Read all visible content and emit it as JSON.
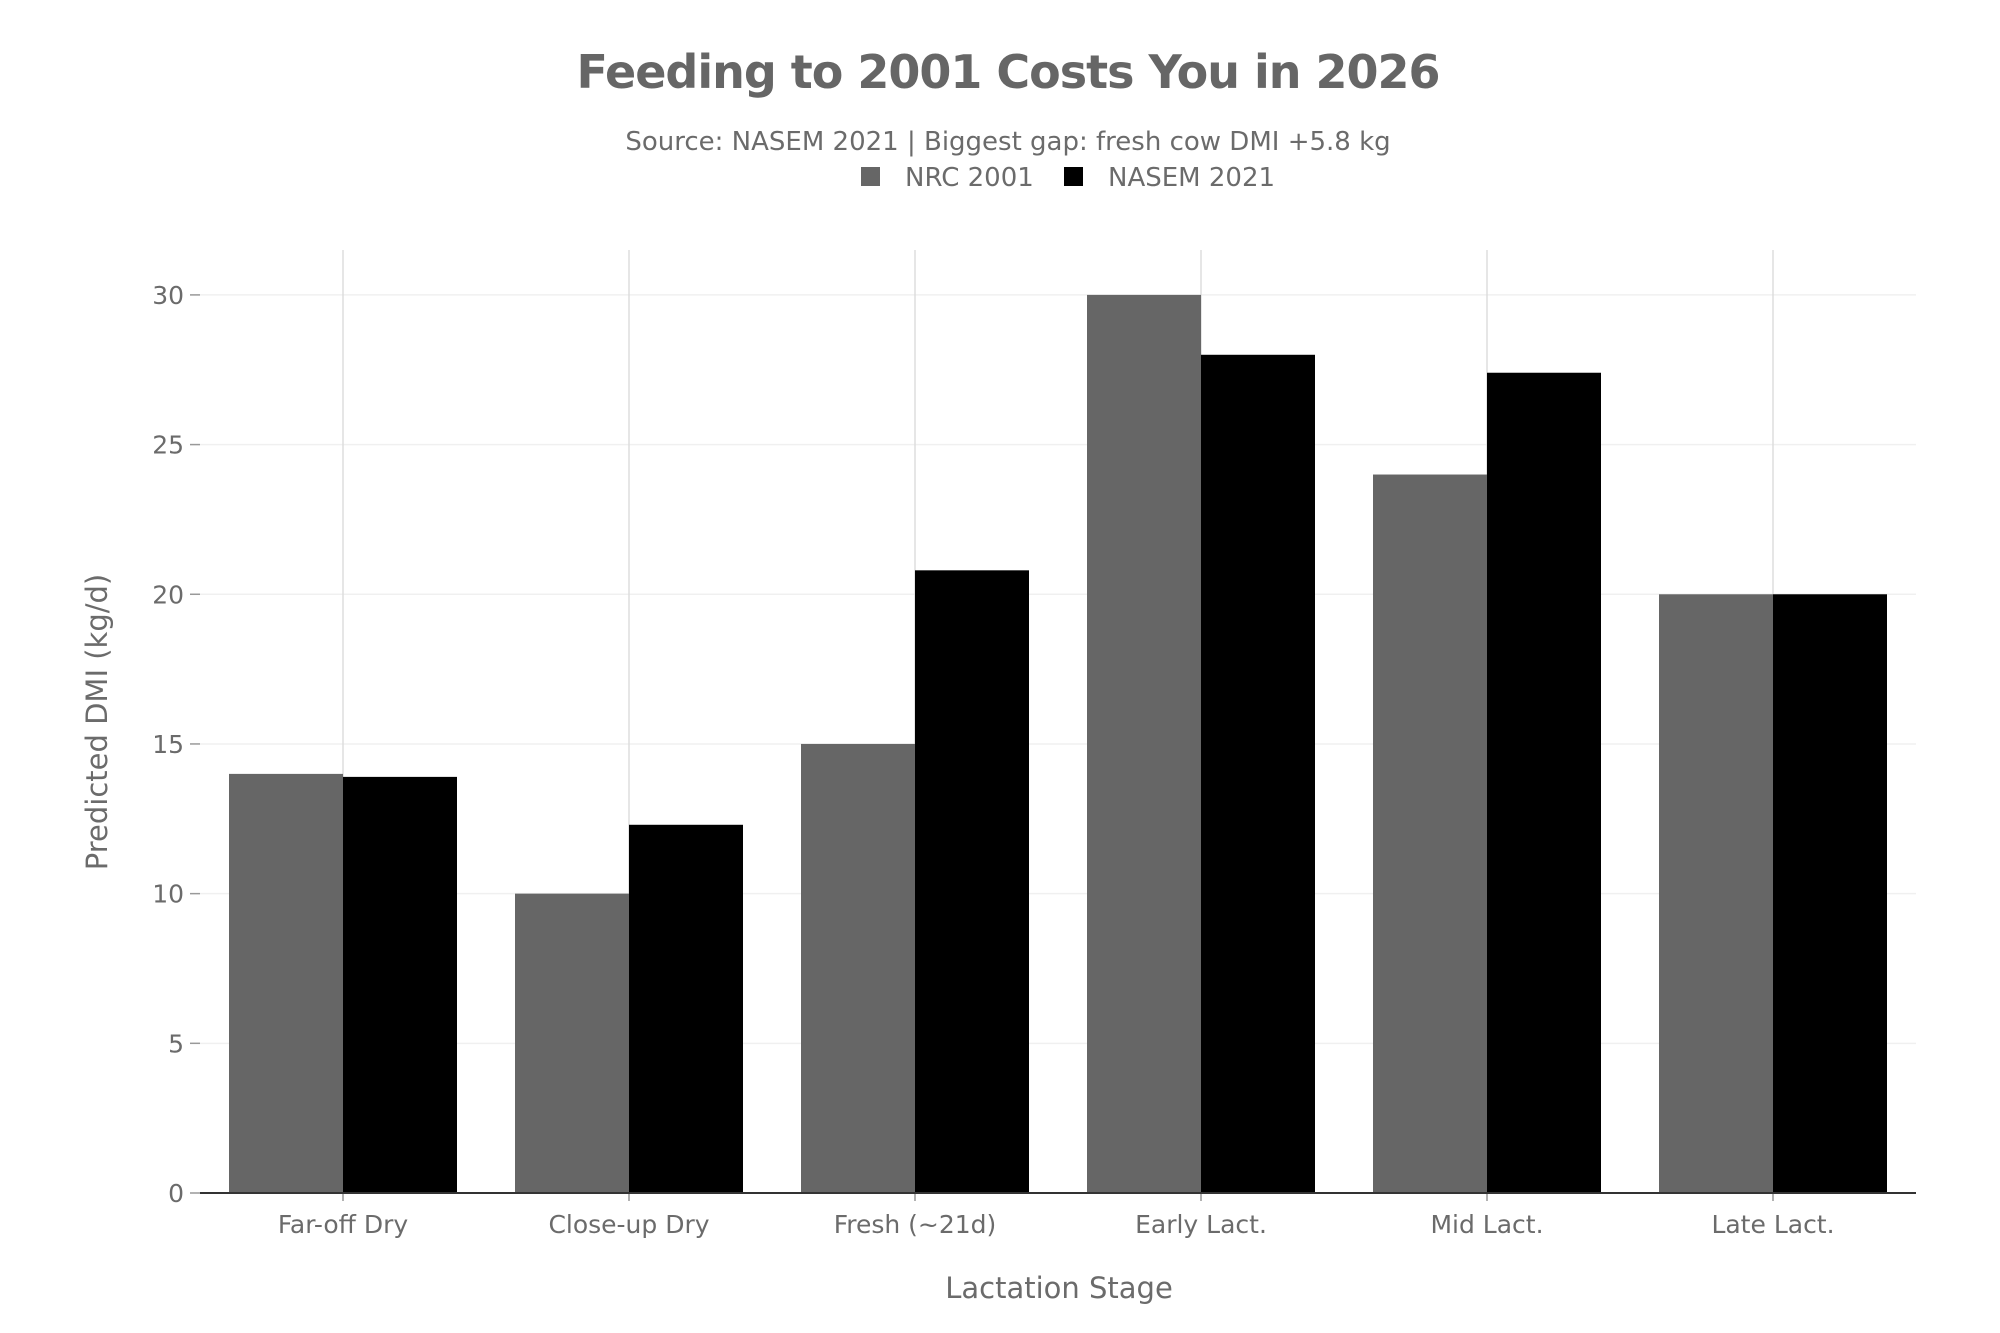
{
  "chart_data": {
    "type": "bar",
    "title": "Feeding to 2001 Costs You in 2026",
    "subtitle": "Source: NASEM 2021 | Biggest gap: fresh cow DMI +5.8 kg",
    "xlabel": "Lactation Stage",
    "ylabel": "Predicted DMI (kg/d)",
    "ylim": [
      0,
      31.5
    ],
    "yticks": [
      0,
      5,
      10,
      15,
      20,
      25,
      30
    ],
    "grid": true,
    "legend_position": "top-center",
    "categories": [
      "Far-off Dry",
      "Close-up Dry",
      "Fresh (~21d)",
      "Early Lact.",
      "Mid Lact.",
      "Late Lact."
    ],
    "series": [
      {
        "name": "NRC 2001",
        "color": "#666666",
        "values": [
          14,
          10,
          15,
          30,
          24,
          20
        ]
      },
      {
        "name": "NASEM 2021",
        "color": "#000000",
        "values": [
          13.9,
          12.3,
          20.8,
          28,
          27.4,
          20
        ]
      }
    ]
  }
}
